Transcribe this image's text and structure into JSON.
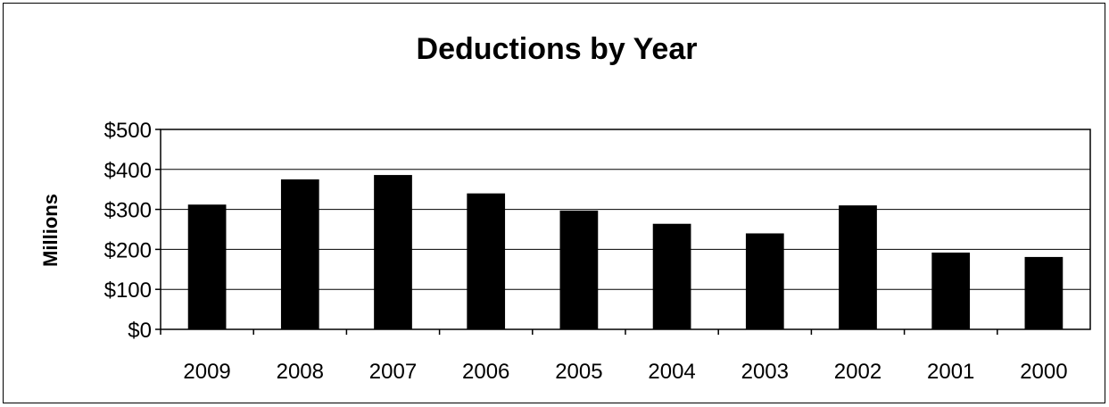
{
  "chart_data": {
    "type": "bar",
    "title": "Deductions by Year",
    "xlabel": "",
    "ylabel": "Millions",
    "categories": [
      "2009",
      "2008",
      "2007",
      "2006",
      "2005",
      "2004",
      "2003",
      "2002",
      "2001",
      "2000"
    ],
    "values": [
      312,
      375,
      386,
      340,
      297,
      264,
      240,
      310,
      192,
      181
    ],
    "ylim": [
      0,
      500
    ],
    "yticks": [
      0,
      100,
      200,
      300,
      400,
      500
    ],
    "ytick_labels": [
      "$0",
      "$100",
      "$200",
      "$300",
      "$400",
      "$500"
    ],
    "grid": true,
    "legend": "none",
    "bar_color": "#000000",
    "background_color": "#ffffff"
  }
}
